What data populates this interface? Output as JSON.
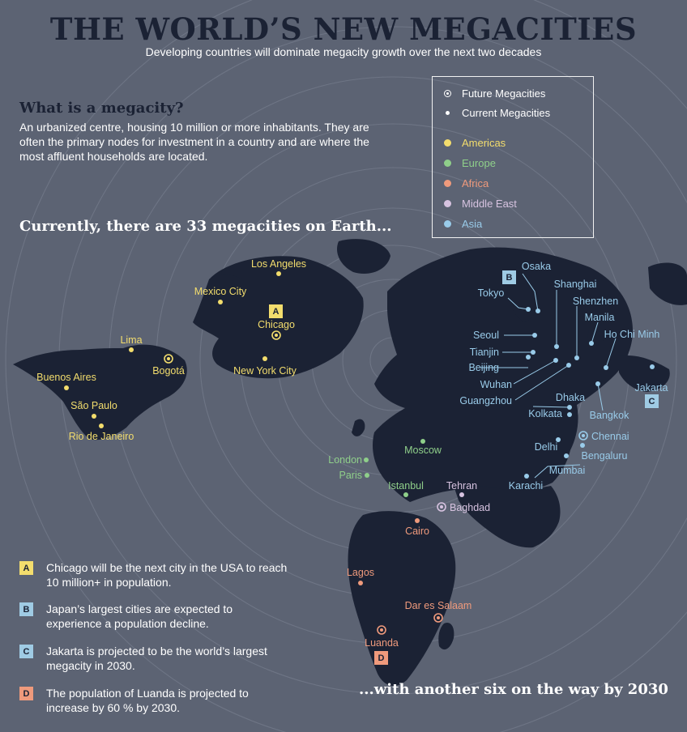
{
  "title": "THE WORLD’S NEW MEGACITIES",
  "subtitle": "Developing countries will dominate megacity growth over the next two decades",
  "definition": {
    "heading": "What is a megacity?",
    "text": "An urbanized centre, housing 10 million or more inhabitants. They are often the primary nodes for investment in a country and are where the most affluent households are located."
  },
  "current_heading": "Currently, there are 33 megacities on Earth...",
  "future_heading": "...with another six on the way by 2030",
  "colors": {
    "background": "#5c6373",
    "land": "#1b2234",
    "americas": "#f3dd6d",
    "europe": "#8fcf8a",
    "africa": "#ef9a7c",
    "middle_east": "#d7c3e0",
    "asia": "#99cbe9",
    "box_asia": "#9fcbe4"
  },
  "legend": {
    "future": "Future Megacities",
    "current": "Current Megacities",
    "regions": [
      {
        "key": "americas",
        "label": "Americas"
      },
      {
        "key": "europe",
        "label": "Europe"
      },
      {
        "key": "africa",
        "label": "Africa"
      },
      {
        "key": "middle_east",
        "label": "Middle East"
      },
      {
        "key": "asia",
        "label": "Asia"
      }
    ]
  },
  "notes": [
    {
      "letter": "A",
      "region": "americas",
      "text": "Chicago will be the next city in the USA to reach 10 million+ in population."
    },
    {
      "letter": "B",
      "region": "asia",
      "text": "Japan’s largest cities are expected to experience a population decline."
    },
    {
      "letter": "C",
      "region": "asia",
      "text": "Jakarta is projected to be the world’s largest megacity in 2030."
    },
    {
      "letter": "D",
      "region": "africa",
      "text": "The population of Luanda is projected to increase by 60 % by 2030."
    }
  ],
  "cities": [
    {
      "name": "Los Angeles",
      "region": "americas",
      "type": "current"
    },
    {
      "name": "Mexico City",
      "region": "americas",
      "type": "current"
    },
    {
      "name": "Chicago",
      "region": "americas",
      "type": "future",
      "note": "A"
    },
    {
      "name": "New York City",
      "region": "americas",
      "type": "current"
    },
    {
      "name": "Lima",
      "region": "americas",
      "type": "current"
    },
    {
      "name": "Bogotá",
      "region": "americas",
      "type": "future"
    },
    {
      "name": "Buenos Aires",
      "region": "americas",
      "type": "current"
    },
    {
      "name": "São Paulo",
      "region": "americas",
      "type": "current"
    },
    {
      "name": "Rio de Janeiro",
      "region": "americas",
      "type": "current"
    },
    {
      "name": "London",
      "region": "europe",
      "type": "current"
    },
    {
      "name": "Paris",
      "region": "europe",
      "type": "current"
    },
    {
      "name": "Moscow",
      "region": "europe",
      "type": "current"
    },
    {
      "name": "Istanbul",
      "region": "europe",
      "type": "current"
    },
    {
      "name": "Tehran",
      "region": "middle_east",
      "type": "current"
    },
    {
      "name": "Baghdad",
      "region": "middle_east",
      "type": "future"
    },
    {
      "name": "Cairo",
      "region": "africa",
      "type": "current"
    },
    {
      "name": "Lagos",
      "region": "africa",
      "type": "current"
    },
    {
      "name": "Dar es Salaam",
      "region": "africa",
      "type": "future"
    },
    {
      "name": "Luanda",
      "region": "africa",
      "type": "future",
      "note": "D"
    },
    {
      "name": "Osaka",
      "region": "asia",
      "type": "current",
      "note": "B"
    },
    {
      "name": "Tokyo",
      "region": "asia",
      "type": "current"
    },
    {
      "name": "Shanghai",
      "region": "asia",
      "type": "current"
    },
    {
      "name": "Shenzhen",
      "region": "asia",
      "type": "current"
    },
    {
      "name": "Manila",
      "region": "asia",
      "type": "current"
    },
    {
      "name": "Ho Chi Minh",
      "region": "asia",
      "type": "current"
    },
    {
      "name": "Seoul",
      "region": "asia",
      "type": "current"
    },
    {
      "name": "Tianjin",
      "region": "asia",
      "type": "current"
    },
    {
      "name": "Beijing",
      "region": "asia",
      "type": "current"
    },
    {
      "name": "Wuhan",
      "region": "asia",
      "type": "current"
    },
    {
      "name": "Guangzhou",
      "region": "asia",
      "type": "current"
    },
    {
      "name": "Jakarta",
      "region": "asia",
      "type": "current",
      "note": "C"
    },
    {
      "name": "Dhaka",
      "region": "asia",
      "type": "current"
    },
    {
      "name": "Kolkata",
      "region": "asia",
      "type": "current"
    },
    {
      "name": "Bangkok",
      "region": "asia",
      "type": "current"
    },
    {
      "name": "Chennai",
      "region": "asia",
      "type": "future"
    },
    {
      "name": "Bengaluru",
      "region": "asia",
      "type": "current"
    },
    {
      "name": "Delhi",
      "region": "asia",
      "type": "current"
    },
    {
      "name": "Mumbai",
      "region": "asia",
      "type": "current"
    },
    {
      "name": "Karachi",
      "region": "asia",
      "type": "current"
    }
  ]
}
